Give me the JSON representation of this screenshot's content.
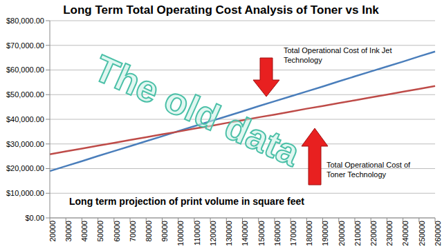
{
  "chart_data": {
    "type": "line",
    "title": "Long Term Total Operating Cost Analysis of Toner vs Ink",
    "xlabel": "Long term projection of print volume in square feet",
    "annotations": [
      "The old data"
    ],
    "categories": [
      "20000",
      "30000",
      "40000",
      "50000",
      "60000",
      "70000",
      "80000",
      "90000",
      "100000",
      "110000",
      "120000",
      "130000",
      "140000",
      "150000",
      "160000",
      "170000",
      "180000",
      "190000",
      "200000",
      "210000",
      "220000",
      "230000",
      "240000",
      "250000",
      "260000"
    ],
    "series": [
      {
        "name": "Total Operational Cost of Ink Jet Technology",
        "color": "#4a7ebb",
        "values": [
          19000,
          21000,
          23000,
          25100,
          27100,
          29100,
          31100,
          33100,
          35200,
          37200,
          39200,
          41200,
          43200,
          45300,
          47300,
          49300,
          51300,
          53300,
          55400,
          57400,
          59400,
          61400,
          63400,
          65500,
          67500
        ]
      },
      {
        "name": "Total Operational Cost of Toner Technology",
        "color": "#be4b48",
        "values": [
          25800,
          27000,
          28100,
          29300,
          30400,
          31600,
          32700,
          33900,
          35000,
          36200,
          37300,
          38500,
          39600,
          40800,
          41900,
          43100,
          44300,
          45400,
          46600,
          47700,
          48900,
          50000,
          51200,
          52300,
          53500
        ]
      }
    ],
    "ylim": [
      0,
      80000
    ],
    "yticks": [
      {
        "value": 0,
        "label": "$0.00"
      },
      {
        "value": 10000,
        "label": "$10,000.00"
      },
      {
        "value": 20000,
        "label": "$20,000.00"
      },
      {
        "value": 30000,
        "label": "$30,000.00"
      },
      {
        "value": 40000,
        "label": "$40,000.00"
      },
      {
        "value": 50000,
        "label": "$50,000.00"
      },
      {
        "value": 60000,
        "label": "$60,000.00"
      },
      {
        "value": 70000,
        "label": "$70,000.00"
      },
      {
        "value": 80000,
        "label": "$80,000.00"
      }
    ],
    "grid": true
  }
}
